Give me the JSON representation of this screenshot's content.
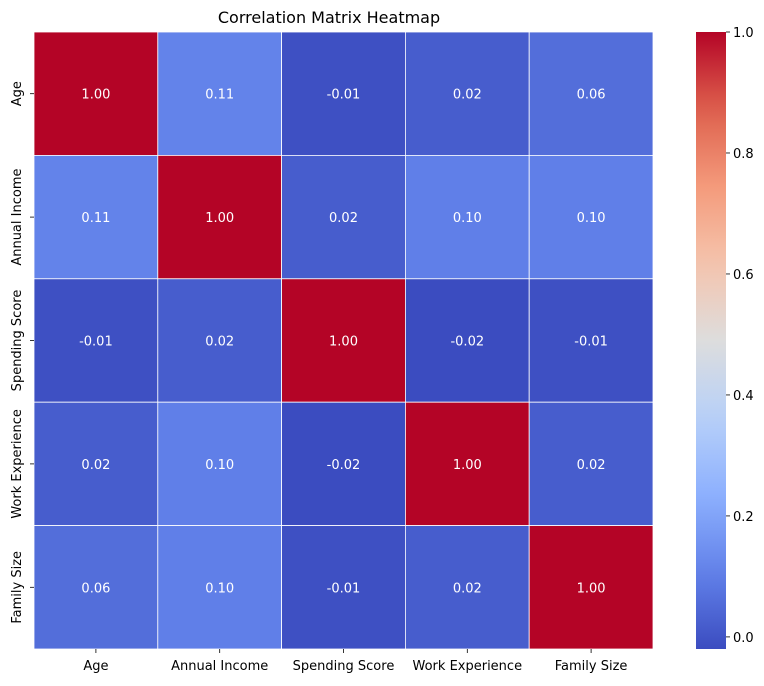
{
  "chart_data": {
    "type": "heatmap",
    "title": "Correlation Matrix Heatmap",
    "xlabel": "",
    "ylabel": "",
    "categories": [
      "Age",
      "Annual Income",
      "Spending Score",
      "Work Experience",
      "Family Size"
    ],
    "matrix": [
      [
        1.0,
        0.11,
        -0.01,
        0.02,
        0.06
      ],
      [
        0.11,
        1.0,
        0.02,
        0.1,
        0.1
      ],
      [
        -0.01,
        0.02,
        1.0,
        -0.02,
        -0.01
      ],
      [
        0.02,
        0.1,
        -0.02,
        1.0,
        0.02
      ],
      [
        0.06,
        0.1,
        -0.01,
        0.02,
        1.0
      ]
    ],
    "value_labels": [
      [
        "1.00",
        "0.11",
        "-0.01",
        "0.02",
        "0.06"
      ],
      [
        "0.11",
        "1.00",
        "0.02",
        "0.10",
        "0.10"
      ],
      [
        "-0.01",
        "0.02",
        "1.00",
        "-0.02",
        "-0.01"
      ],
      [
        "0.02",
        "0.10",
        "-0.02",
        "1.00",
        "0.02"
      ],
      [
        "0.06",
        "0.10",
        "-0.01",
        "0.02",
        "1.00"
      ]
    ],
    "colormap": "coolwarm",
    "color_range": [
      -0.02,
      1.0
    ],
    "colorbar_ticks": [
      0.0,
      0.2,
      0.4,
      0.6,
      0.8,
      1.0
    ],
    "colorbar_tick_labels": [
      "0.0",
      "0.2",
      "0.4",
      "0.6",
      "0.8",
      "1.0"
    ],
    "grid": false,
    "legend": "colorbar-right",
    "annotation_color": "#ffffff",
    "cell_border_color": "#ffffff"
  }
}
